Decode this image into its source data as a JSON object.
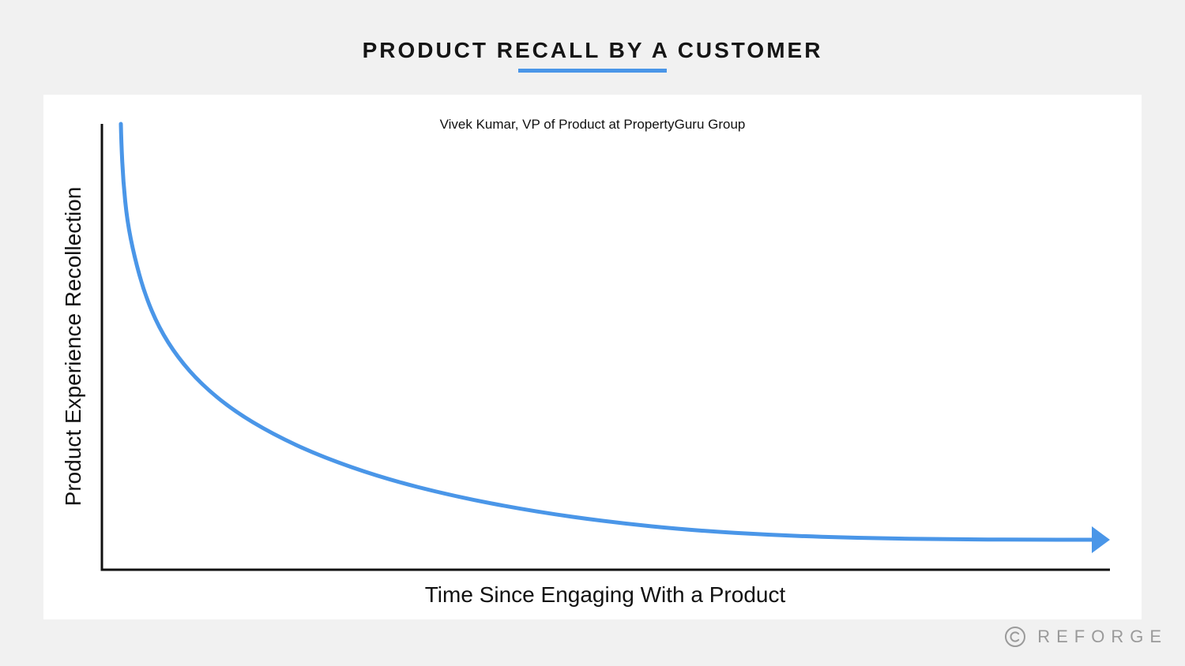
{
  "page": {
    "title": "PRODUCT RECALL BY A CUSTOMER",
    "brand": "REFORGE"
  },
  "colors": {
    "background": "#f1f1f1",
    "card": "#ffffff",
    "accent": "#4a96e8",
    "axis": "#111111",
    "text": "#151515",
    "brand": "#9a9a9a"
  },
  "icons": {
    "brand_mark": "copyright-icon",
    "curve_end": "arrow-right-icon"
  },
  "chart_data": {
    "type": "line",
    "title": "",
    "subtitle": "Vivek Kumar, VP of Product at PropertyGuru Group",
    "xlabel": "Time Since Engaging With a Product",
    "ylabel": "Product Experience Recollection",
    "shape": "exponential-decay",
    "x_ticks": false,
    "y_ticks": false,
    "grid": false,
    "legend": "none",
    "series": [
      {
        "color": "#4a96e8",
        "end_marker": "arrow"
      }
    ]
  }
}
